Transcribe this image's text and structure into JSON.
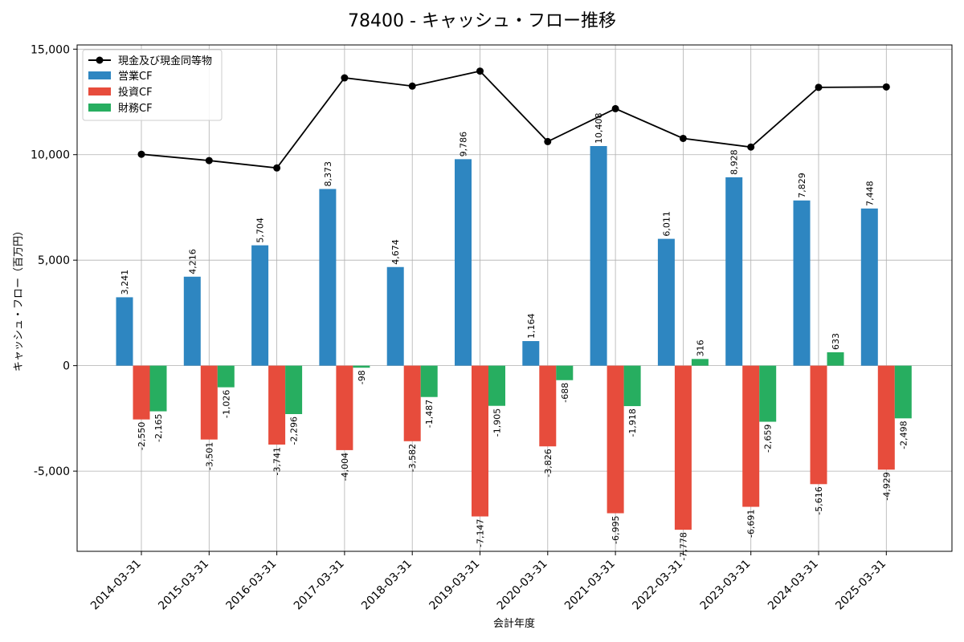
{
  "chart_data": {
    "type": "bar",
    "title": "78400 - キャッシュ・フロー推移",
    "xlabel": "会計年度",
    "ylabel": "キャッシュ・フロー（百万円）",
    "ylim": [
      -8800,
      15200
    ],
    "yticks": [
      -5000,
      0,
      5000,
      10000,
      15000
    ],
    "ytick_labels": [
      "-5,000",
      "0",
      "5,000",
      "10,000",
      "15,000"
    ],
    "grid": true,
    "legend_position": "top-left",
    "categories": [
      "2014-03-31",
      "2015-03-31",
      "2016-03-31",
      "2017-03-31",
      "2018-03-31",
      "2019-03-31",
      "2020-03-31",
      "2021-03-31",
      "2022-03-31",
      "2023-03-31",
      "2024-03-31",
      "2025-03-31"
    ],
    "series": [
      {
        "name": "営業CF",
        "kind": "bar",
        "color": "#2e86c1",
        "values": [
          3241,
          4216,
          5704,
          8373,
          4674,
          9786,
          1164,
          10408,
          6011,
          8928,
          7829,
          7448
        ],
        "labels": [
          "3,241",
          "4,216",
          "5,704",
          "8,373",
          "4,674",
          "9,786",
          "1,164",
          "10,408",
          "6,011",
          "8,928",
          "7,829",
          "7,448"
        ]
      },
      {
        "name": "投資CF",
        "kind": "bar",
        "color": "#e74c3c",
        "values": [
          -2550,
          -3501,
          -3741,
          -4004,
          -3582,
          -7147,
          -3826,
          -6995,
          -7778,
          -6691,
          -5616,
          -4929
        ],
        "labels": [
          "-2,550",
          "-3,501",
          "-3,741",
          "-4,004",
          "-3,582",
          "-7,147",
          "-3,826",
          "-6,995",
          "-7,778",
          "-6,691",
          "-5,616",
          "-4,929"
        ]
      },
      {
        "name": "財務CF",
        "kind": "bar",
        "color": "#27ae60",
        "values": [
          -2165,
          -1026,
          -2296,
          -98,
          -1487,
          -1905,
          -688,
          -1918,
          316,
          -2659,
          633,
          -2498
        ],
        "labels": [
          "-2,165",
          "-1,026",
          "-2,296",
          "-98",
          "-1,487",
          "-1,905",
          "-688",
          "-1,918",
          "316",
          "-2,659",
          "633",
          "-2,498"
        ]
      },
      {
        "name": "現金及び現金同等物",
        "kind": "line",
        "color": "#000000",
        "values": [
          10020,
          9720,
          9370,
          13640,
          13250,
          13960,
          10620,
          12180,
          10770,
          10360,
          13190,
          13210
        ]
      }
    ]
  }
}
